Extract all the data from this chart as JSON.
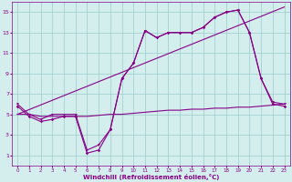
{
  "xlabel": "Windchill (Refroidissement éolien,°C)",
  "xlim": [
    -0.5,
    23.5
  ],
  "ylim": [
    0,
    16
  ],
  "xticks": [
    0,
    1,
    2,
    3,
    4,
    5,
    6,
    7,
    8,
    9,
    10,
    11,
    12,
    13,
    14,
    15,
    16,
    17,
    18,
    19,
    20,
    21,
    22,
    23
  ],
  "yticks": [
    1,
    3,
    5,
    7,
    9,
    11,
    13,
    15
  ],
  "background_color": "#d4eeed",
  "line_color": "#880088",
  "grid_color": "#99cccc",
  "hours": [
    0,
    1,
    2,
    3,
    4,
    5,
    6,
    7,
    8,
    9,
    10,
    11,
    12,
    13,
    14,
    15,
    16,
    17,
    18,
    19,
    20,
    21,
    22,
    23
  ],
  "curve1": [
    6.0,
    5.0,
    4.5,
    5.0,
    5.0,
    5.0,
    1.5,
    2.0,
    3.5,
    8.5,
    10.0,
    13.2,
    12.5,
    13.0,
    13.0,
    13.0,
    13.5,
    14.5,
    15.0,
    15.2,
    13.0,
    8.5,
    6.2,
    6.0
  ],
  "curve1_markers": "v",
  "curve2": [
    5.8,
    4.8,
    4.3,
    4.5,
    4.8,
    4.8,
    1.2,
    1.5,
    3.5,
    8.5,
    10.0,
    13.2,
    12.5,
    13.0,
    13.0,
    13.0,
    13.5,
    14.5,
    15.0,
    15.2,
    13.0,
    8.5,
    6.0,
    5.8
  ],
  "curve2_markers": "o",
  "flat_line": [
    5.0,
    5.0,
    4.8,
    4.8,
    4.8,
    4.8,
    4.8,
    4.9,
    5.0,
    5.0,
    5.1,
    5.2,
    5.3,
    5.4,
    5.4,
    5.5,
    5.5,
    5.6,
    5.6,
    5.7,
    5.7,
    5.8,
    5.9,
    6.0
  ],
  "trend_x": [
    0,
    23
  ],
  "trend_y": [
    5.0,
    15.5
  ]
}
